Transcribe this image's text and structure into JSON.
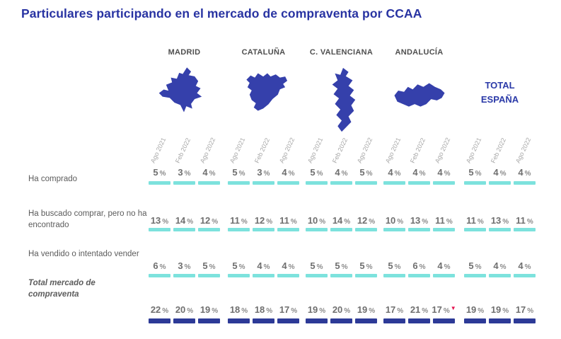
{
  "title": "Particulares participando en el mercado de compraventa por CCAA",
  "header": {
    "regions": [
      {
        "name": "MADRID",
        "icon": "madrid-map"
      },
      {
        "name": "CATALUÑA",
        "icon": "cataluna-map"
      },
      {
        "name": "C. VALENCIANA",
        "icon": "valenciana-map"
      },
      {
        "name": "ANDALUCÍA",
        "icon": "andalucia-map"
      },
      {
        "name": "TOTAL ESPAÑA",
        "icon": null
      }
    ],
    "periods": [
      "Ago 2021",
      "Feb 2022",
      "Ago 2022"
    ]
  },
  "chart_data": {
    "type": "table",
    "title": "Particulares participando en el mercado de compraventa por CCAA",
    "columns": [
      "MADRID",
      "CATALUÑA",
      "C. VALENCIANA",
      "ANDALUCÍA",
      "TOTAL ESPAÑA"
    ],
    "periods": [
      "Ago 2021",
      "Feb 2022",
      "Ago 2022"
    ],
    "unit": "%",
    "rows": [
      {
        "label": "Ha comprado",
        "bar_style": "teal",
        "values": [
          [
            5,
            3,
            4
          ],
          [
            5,
            3,
            4
          ],
          [
            5,
            4,
            5
          ],
          [
            4,
            4,
            4
          ],
          [
            5,
            4,
            4
          ]
        ]
      },
      {
        "label": "Ha buscado comprar, pero no ha encontrado",
        "bar_style": "teal",
        "values": [
          [
            13,
            14,
            12
          ],
          [
            11,
            12,
            11
          ],
          [
            10,
            14,
            12
          ],
          [
            10,
            13,
            11
          ],
          [
            11,
            13,
            11
          ]
        ]
      },
      {
        "label": "Ha vendido o intentado vender",
        "bar_style": "teal",
        "values": [
          [
            6,
            3,
            5
          ],
          [
            5,
            4,
            4
          ],
          [
            5,
            5,
            5
          ],
          [
            5,
            6,
            4
          ],
          [
            5,
            4,
            4
          ]
        ]
      },
      {
        "label": "Total mercado de compraventa",
        "emphasis": true,
        "bar_style": "blue",
        "values": [
          [
            22,
            20,
            19
          ],
          [
            18,
            18,
            17
          ],
          [
            19,
            20,
            19
          ],
          [
            17,
            21,
            17
          ],
          [
            19,
            19,
            17
          ]
        ],
        "markers": [
          {
            "column": "ANDALUCÍA",
            "period": "Ago 2022",
            "symbol": "▼",
            "meaning": "decrease-marker"
          }
        ]
      }
    ]
  },
  "colors": {
    "title": "#2833a2",
    "map_fill": "#3540ab",
    "teal_bar": "#7de2dd",
    "blue_bar": "#2d3a97",
    "value_text": "#6f6f6f",
    "label_text": "#5c5c5c",
    "region_label_text": "#4f4f4f",
    "period_text": "#a6a6a6",
    "marker_red": "#e4134f"
  }
}
